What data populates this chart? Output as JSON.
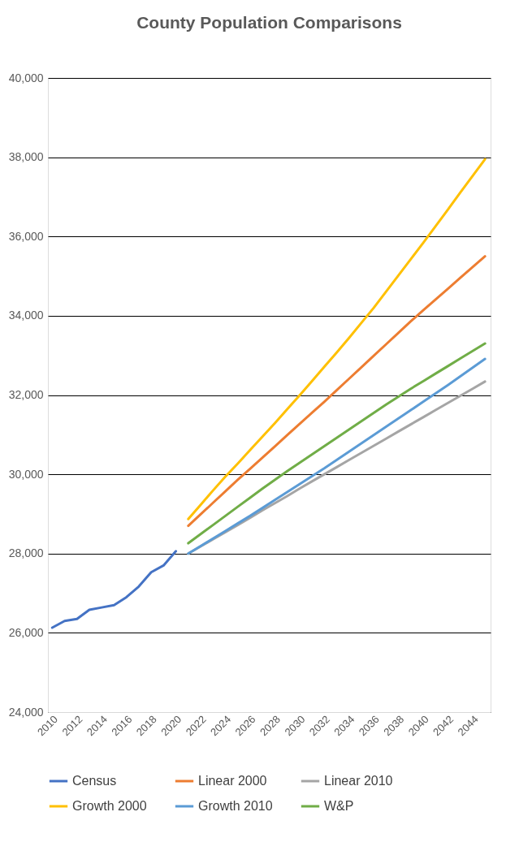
{
  "chart_data": {
    "type": "line",
    "title": "County Population Comparisons",
    "xlim": [
      2009.65,
      2045.45
    ],
    "xticks": [
      2010,
      2012,
      2014,
      2016,
      2018,
      2020,
      2022,
      2024,
      2026,
      2028,
      2030,
      2032,
      2034,
      2036,
      2038,
      2040,
      2042,
      2044
    ],
    "ylim": [
      24000,
      40000
    ],
    "yticks": [
      {
        "value": 24000,
        "label": "24,000"
      },
      {
        "value": 26000,
        "label": "26,000"
      },
      {
        "value": 28000,
        "label": "28,000"
      },
      {
        "value": 30000,
        "label": "30,000"
      },
      {
        "value": 32000,
        "label": "32,000"
      },
      {
        "value": 34000,
        "label": "34,000"
      },
      {
        "value": 36000,
        "label": "36,000"
      },
      {
        "value": 38000,
        "label": "38,000"
      },
      {
        "value": 40000,
        "label": "40,000"
      }
    ],
    "grid": "y",
    "legend": "bottom",
    "marker": "none",
    "line_style": "solid",
    "series": [
      {
        "name": "Census",
        "color": "#4472c4",
        "x": [
          2010,
          2011,
          2012,
          2013,
          2014,
          2015,
          2016,
          2017,
          2018,
          2019,
          2020
        ],
        "values": [
          26130,
          26300,
          26350,
          26580,
          26640,
          26700,
          26900,
          27170,
          27530,
          27700,
          28060
        ]
      },
      {
        "name": "Linear 2000",
        "color": "#ed7d31",
        "x": [
          2021,
          2022,
          2023,
          2024,
          2025,
          2026,
          2027,
          2028,
          2029,
          2030,
          2031,
          2032,
          2033,
          2034,
          2035,
          2036,
          2037,
          2038,
          2039,
          2040,
          2041,
          2042,
          2043,
          2044,
          2045
        ],
        "values": [
          28700,
          28990,
          29280,
          29570,
          29860,
          30140,
          30420,
          30700,
          30990,
          31270,
          31550,
          31830,
          32120,
          32410,
          32700,
          32990,
          33280,
          33570,
          33860,
          34140,
          34410,
          34680,
          34960,
          35230,
          35500
        ]
      },
      {
        "name": "Linear 2010",
        "color": "#a5a5a5",
        "x": [
          2021,
          2022,
          2023,
          2024,
          2025,
          2026,
          2027,
          2028,
          2029,
          2030,
          2031,
          2032,
          2033,
          2034,
          2035,
          2036,
          2037,
          2038,
          2039,
          2040,
          2041,
          2042,
          2043,
          2044,
          2045
        ],
        "values": [
          28000,
          28180,
          28360,
          28540,
          28720,
          28900,
          29090,
          29270,
          29450,
          29640,
          29820,
          30000,
          30180,
          30360,
          30540,
          30720,
          30900,
          31080,
          31260,
          31440,
          31620,
          31800,
          31980,
          32160,
          32340
        ]
      },
      {
        "name": "Growth 2000",
        "color": "#ffc000",
        "x": [
          2021,
          2022,
          2023,
          2024,
          2025,
          2026,
          2027,
          2028,
          2029,
          2030,
          2031,
          2032,
          2033,
          2034,
          2035,
          2036,
          2037,
          2038,
          2039,
          2040,
          2041,
          2042,
          2043,
          2044,
          2045
        ],
        "values": [
          28870,
          29230,
          29590,
          29940,
          30270,
          30610,
          30950,
          31290,
          31640,
          31990,
          32350,
          32710,
          33070,
          33440,
          33820,
          34200,
          34610,
          35020,
          35430,
          35840,
          36260,
          36680,
          37110,
          37530,
          37950
        ]
      },
      {
        "name": "Growth 2010",
        "color": "#5b9bd5",
        "x": [
          2021,
          2022,
          2023,
          2024,
          2025,
          2026,
          2027,
          2028,
          2029,
          2030,
          2031,
          2032,
          2033,
          2034,
          2035,
          2036,
          2037,
          2038,
          2039,
          2040,
          2041,
          2042,
          2043,
          2044,
          2045
        ],
        "values": [
          28000,
          28190,
          28380,
          28570,
          28760,
          28950,
          29150,
          29350,
          29550,
          29750,
          29950,
          30150,
          30360,
          30570,
          30780,
          30990,
          31200,
          31410,
          31620,
          31830,
          32040,
          32250,
          32470,
          32690,
          32910
        ]
      },
      {
        "name": "W&P",
        "color": "#70ad47",
        "x": [
          2021,
          2022,
          2023,
          2024,
          2025,
          2026,
          2027,
          2028,
          2029,
          2030,
          2031,
          2032,
          2033,
          2034,
          2035,
          2036,
          2037,
          2038,
          2039,
          2040,
          2041,
          2042,
          2043,
          2044,
          2045
        ],
        "values": [
          28260,
          28490,
          28720,
          28950,
          29180,
          29410,
          29640,
          29860,
          30080,
          30290,
          30500,
          30710,
          30920,
          31130,
          31340,
          31550,
          31760,
          31960,
          32160,
          32350,
          32540,
          32730,
          32920,
          33110,
          33300
        ]
      }
    ]
  }
}
